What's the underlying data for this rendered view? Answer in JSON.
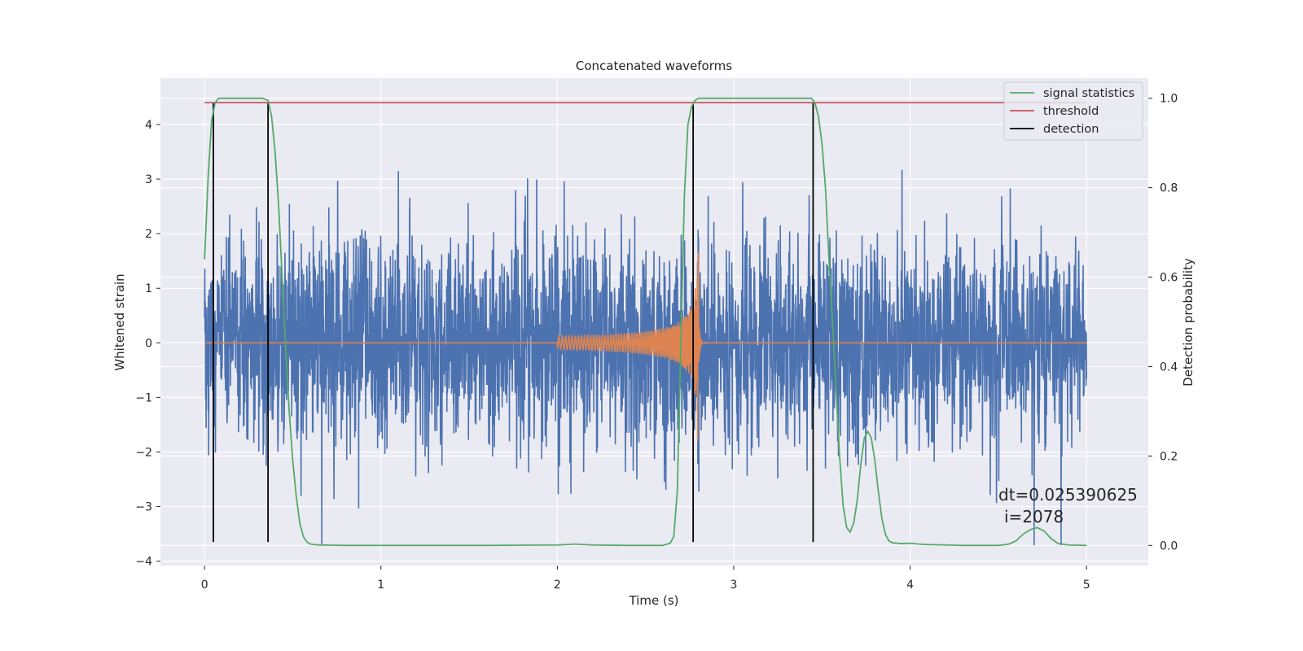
{
  "chart_data": {
    "type": "line",
    "title": "Concatenated waveforms",
    "xlabel": "Time (s)",
    "ylabel": "Whitened strain",
    "y2label": "Detection probability",
    "xlim": [
      -0.25,
      5.35
    ],
    "ylim": [
      -4.08,
      4.85
    ],
    "y2lim": [
      -0.045,
      1.045
    ],
    "x_ticks": [
      0,
      1,
      2,
      3,
      4,
      5
    ],
    "y_ticks": [
      -4,
      -3,
      -2,
      -1,
      0,
      1,
      2,
      3,
      4
    ],
    "y2_ticks": [
      0.0,
      0.2,
      0.4,
      0.6,
      0.8,
      1.0
    ],
    "x_tick_labels": [
      "0",
      "1",
      "2",
      "3",
      "4",
      "5"
    ],
    "y_tick_labels": [
      "−4",
      "−3",
      "−2",
      "−1",
      "0",
      "1",
      "2",
      "3",
      "4"
    ],
    "y2_tick_labels": [
      "0.0",
      "0.2",
      "0.4",
      "0.6",
      "0.8",
      "1.0"
    ],
    "grid": true,
    "legend_position": "top-right",
    "colors": {
      "background": "#eaeaf2",
      "strain": "#4c72b0",
      "injection": "#dd8452",
      "signal_statistics": "#55a868",
      "threshold": "#c44e52",
      "detection": "#000000"
    },
    "series": [
      {
        "name": "signal statistics",
        "axis": "right",
        "x": [
          0.0,
          0.02,
          0.04,
          0.06,
          0.08,
          0.1,
          0.15,
          0.25,
          0.33,
          0.36,
          0.38,
          0.4,
          0.42,
          0.44,
          0.46,
          0.48,
          0.5,
          0.52,
          0.54,
          0.56,
          0.58,
          0.6,
          0.65,
          0.8,
          1.2,
          1.6,
          2.0,
          2.1,
          2.2,
          2.4,
          2.6,
          2.64,
          2.66,
          2.68,
          2.7,
          2.72,
          2.74,
          2.76,
          2.78,
          2.8,
          2.82,
          2.86,
          3.0,
          3.2,
          3.44,
          3.46,
          3.48,
          3.5,
          3.52,
          3.54,
          3.56,
          3.58,
          3.6,
          3.62,
          3.64,
          3.66,
          3.68,
          3.7,
          3.72,
          3.74,
          3.76,
          3.78,
          3.8,
          3.82,
          3.84,
          3.86,
          3.88,
          3.9,
          3.95,
          4.0,
          4.05,
          4.1,
          4.3,
          4.5,
          4.56,
          4.6,
          4.64,
          4.68,
          4.72,
          4.76,
          4.8,
          4.84,
          4.9,
          5.0
        ],
        "values": [
          0.64,
          0.82,
          0.95,
          0.99,
          1.0,
          1.0,
          1.0,
          1.0,
          1.0,
          0.995,
          0.96,
          0.88,
          0.76,
          0.6,
          0.44,
          0.3,
          0.19,
          0.11,
          0.05,
          0.02,
          0.008,
          0.003,
          0.001,
          0.0,
          0.0,
          0.0,
          0.001,
          0.003,
          0.001,
          0.0,
          0.0,
          0.005,
          0.02,
          0.12,
          0.45,
          0.78,
          0.94,
          0.98,
          0.995,
          1.0,
          1.0,
          1.0,
          1.0,
          1.0,
          1.0,
          0.99,
          0.96,
          0.9,
          0.8,
          0.64,
          0.5,
          0.35,
          0.2,
          0.09,
          0.04,
          0.03,
          0.05,
          0.1,
          0.18,
          0.24,
          0.255,
          0.24,
          0.19,
          0.12,
          0.06,
          0.025,
          0.01,
          0.006,
          0.004,
          0.005,
          0.003,
          0.002,
          0.0,
          0.0,
          0.003,
          0.01,
          0.025,
          0.035,
          0.04,
          0.032,
          0.015,
          0.004,
          0.001,
          0.0
        ]
      },
      {
        "name": "threshold",
        "axis": "right",
        "x": [
          0.0,
          5.0
        ],
        "values": [
          0.99,
          0.99
        ]
      },
      {
        "name": "detection",
        "axis": "left",
        "segments": [
          {
            "x": 0.05,
            "y": [
              -3.65,
              4.4
            ]
          },
          {
            "x": 0.36,
            "y": [
              -3.65,
              4.4
            ]
          },
          {
            "x": 2.77,
            "y": [
              -3.65,
              4.4
            ]
          },
          {
            "x": 3.45,
            "y": [
              -3.65,
              4.4
            ]
          }
        ]
      }
    ],
    "legend": [
      "signal statistics",
      "threshold",
      "detection"
    ],
    "annotation": [
      "dt=0.025390625",
      "i=2078"
    ]
  }
}
